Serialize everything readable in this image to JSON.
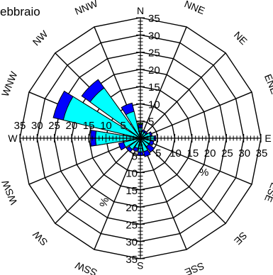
{
  "chart_data": {
    "type": "wind-rose",
    "title": "ebbraio",
    "unit": "%",
    "rmax": 35,
    "ring_step": 5,
    "tick_labels": [
      "5",
      "10",
      "15",
      "20",
      "25",
      "30",
      "35"
    ],
    "directions": [
      {
        "label": "N",
        "deg": 0
      },
      {
        "label": "NNE",
        "deg": 22.5
      },
      {
        "label": "NE",
        "deg": 45
      },
      {
        "label": "ENE",
        "deg": 67.5
      },
      {
        "label": "E",
        "deg": 90
      },
      {
        "label": "ESE",
        "deg": 112.5
      },
      {
        "label": "SE",
        "deg": 135
      },
      {
        "label": "SSE",
        "deg": 157.5
      },
      {
        "label": "S",
        "deg": 180
      },
      {
        "label": "SSW",
        "deg": 202.5
      },
      {
        "label": "SW",
        "deg": 225
      },
      {
        "label": "WSW",
        "deg": 247.5
      },
      {
        "label": "W",
        "deg": 270
      },
      {
        "label": "WNW",
        "deg": 292.5
      },
      {
        "label": "NW",
        "deg": 315
      },
      {
        "label": "NNW",
        "deg": 337.5
      }
    ],
    "series": [
      {
        "color": "#00ffff",
        "values": [
          3,
          2,
          2,
          3,
          4,
          3,
          3,
          4,
          4,
          3,
          4,
          5,
          13,
          23,
          18,
          8
        ]
      },
      {
        "color": "#0000ff",
        "values": [
          1,
          0.5,
          0.5,
          0.5,
          0.5,
          1,
          2,
          1.5,
          1,
          1,
          1,
          1.5,
          1.5,
          3,
          3,
          2.5
        ]
      },
      {
        "color": "#1a8c1a",
        "values": [
          0.5,
          0,
          0,
          0,
          0,
          0,
          0,
          0,
          0,
          0,
          0,
          0,
          0,
          0,
          0,
          0
        ]
      }
    ]
  }
}
